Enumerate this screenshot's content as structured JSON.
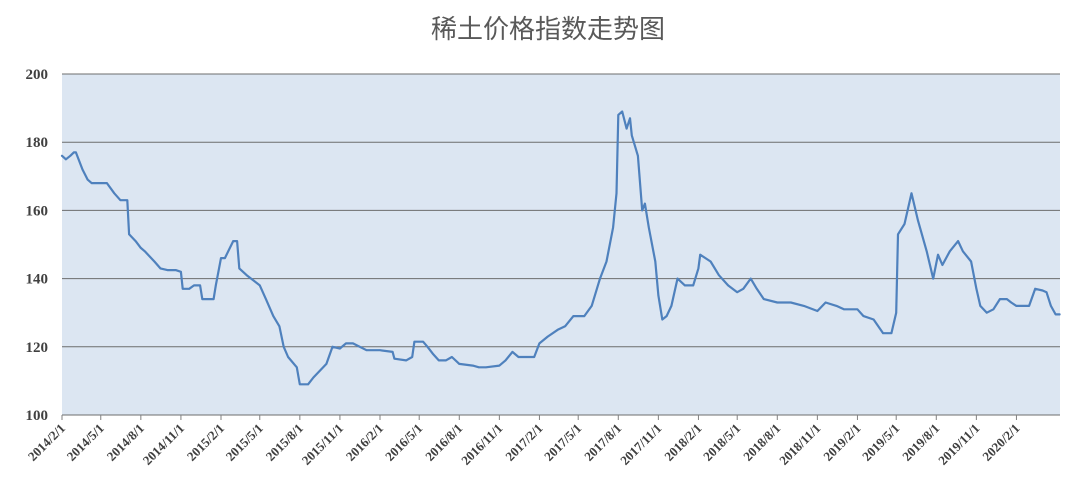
{
  "chart_data": {
    "type": "line",
    "title": "稀土价格指数走势图",
    "xlabel": "",
    "ylabel": "",
    "ylim": [
      100,
      200
    ],
    "yticks": [
      "100",
      "120",
      "140",
      "160",
      "180",
      "200"
    ],
    "xticks": [
      "2014/2/1",
      "2014/5/1",
      "2014/8/1",
      "2014/11/1",
      "2015/2/1",
      "2015/5/1",
      "2015/8/1",
      "2015/11/1",
      "2016/2/1",
      "2016/5/1",
      "2016/8/1",
      "2016/11/1",
      "2017/2/1",
      "2017/5/1",
      "2017/8/1",
      "2017/11/1",
      "2018/2/1",
      "2018/5/1",
      "2018/8/1",
      "2018/11/1",
      "2019/2/1",
      "2019/5/1",
      "2019/8/1",
      "2019/11/1",
      "2020/2/1"
    ],
    "grid": true,
    "legend": "none",
    "colors": {
      "line": "#4f81bd",
      "plot_bg": "#dce6f2",
      "grid": "#6d6d6d"
    },
    "series": [
      {
        "values": [
          [
            "2014-02-01",
            176
          ],
          [
            "2014-02-10",
            175
          ],
          [
            "2014-02-20",
            176
          ],
          [
            "2014-02-28",
            177
          ],
          [
            "2014-03-05",
            177
          ],
          [
            "2014-03-20",
            172
          ],
          [
            "2014-04-01",
            169
          ],
          [
            "2014-04-10",
            168
          ],
          [
            "2014-05-01",
            168
          ],
          [
            "2014-05-15",
            168
          ],
          [
            "2014-06-01",
            165
          ],
          [
            "2014-06-15",
            163
          ],
          [
            "2014-07-01",
            163
          ],
          [
            "2014-07-05",
            153
          ],
          [
            "2014-07-20",
            151
          ],
          [
            "2014-08-01",
            149
          ],
          [
            "2014-08-10",
            148
          ],
          [
            "2014-09-01",
            145
          ],
          [
            "2014-09-15",
            143
          ],
          [
            "2014-10-01",
            142.5
          ],
          [
            "2014-10-20",
            142.5
          ],
          [
            "2014-11-01",
            142
          ],
          [
            "2014-11-05",
            137
          ],
          [
            "2014-11-20",
            137
          ],
          [
            "2014-12-01",
            138
          ],
          [
            "2014-12-15",
            138
          ],
          [
            "2014-12-20",
            134
          ],
          [
            "2015-01-01",
            134
          ],
          [
            "2015-01-15",
            134
          ],
          [
            "2015-01-20",
            138
          ],
          [
            "2015-02-01",
            146
          ],
          [
            "2015-02-10",
            146
          ],
          [
            "2015-03-01",
            151
          ],
          [
            "2015-03-10",
            151
          ],
          [
            "2015-03-15",
            143
          ],
          [
            "2015-04-01",
            141
          ],
          [
            "2015-05-01",
            138
          ],
          [
            "2015-05-15",
            134
          ],
          [
            "2015-06-01",
            129
          ],
          [
            "2015-06-15",
            126
          ],
          [
            "2015-06-25",
            120
          ],
          [
            "2015-07-05",
            117
          ],
          [
            "2015-07-25",
            114
          ],
          [
            "2015-08-01",
            109
          ],
          [
            "2015-08-20",
            109
          ],
          [
            "2015-09-01",
            111
          ],
          [
            "2015-10-01",
            115
          ],
          [
            "2015-10-15",
            120
          ],
          [
            "2015-11-01",
            119.5
          ],
          [
            "2015-11-15",
            121
          ],
          [
            "2015-12-01",
            121
          ],
          [
            "2016-01-01",
            119
          ],
          [
            "2016-02-01",
            119
          ],
          [
            "2016-03-01",
            118.5
          ],
          [
            "2016-03-05",
            116.5
          ],
          [
            "2016-04-01",
            116
          ],
          [
            "2016-04-15",
            117
          ],
          [
            "2016-04-20",
            121.5
          ],
          [
            "2016-05-10",
            121.5
          ],
          [
            "2016-05-20",
            120
          ],
          [
            "2016-06-01",
            118
          ],
          [
            "2016-06-15",
            116
          ],
          [
            "2016-07-01",
            116
          ],
          [
            "2016-07-15",
            117
          ],
          [
            "2016-08-01",
            115
          ],
          [
            "2016-09-01",
            114.5
          ],
          [
            "2016-09-15",
            114
          ],
          [
            "2016-10-01",
            114
          ],
          [
            "2016-11-01",
            114.5
          ],
          [
            "2016-11-15",
            116
          ],
          [
            "2016-12-01",
            118.5
          ],
          [
            "2016-12-15",
            117
          ],
          [
            "2017-01-01",
            117
          ],
          [
            "2017-01-20",
            117
          ],
          [
            "2017-02-01",
            121
          ],
          [
            "2017-02-20",
            123
          ],
          [
            "2017-03-15",
            125
          ],
          [
            "2017-04-01",
            126
          ],
          [
            "2017-04-20",
            129
          ],
          [
            "2017-05-15",
            129
          ],
          [
            "2017-06-01",
            132
          ],
          [
            "2017-06-20",
            140
          ],
          [
            "2017-07-05",
            145
          ],
          [
            "2017-07-20",
            155
          ],
          [
            "2017-07-28",
            165
          ],
          [
            "2017-08-01",
            188
          ],
          [
            "2017-08-10",
            189
          ],
          [
            "2017-08-20",
            184
          ],
          [
            "2017-08-28",
            187
          ],
          [
            "2017-09-01",
            182
          ],
          [
            "2017-09-15",
            176
          ],
          [
            "2017-09-25",
            160
          ],
          [
            "2017-10-01",
            162
          ],
          [
            "2017-10-10",
            155
          ],
          [
            "2017-10-25",
            145
          ],
          [
            "2017-11-01",
            135
          ],
          [
            "2017-11-10",
            128
          ],
          [
            "2017-11-20",
            129
          ],
          [
            "2017-12-01",
            132
          ],
          [
            "2017-12-15",
            140
          ],
          [
            "2018-01-01",
            138
          ],
          [
            "2018-01-20",
            138
          ],
          [
            "2018-02-01",
            143
          ],
          [
            "2018-02-05",
            147
          ],
          [
            "2018-03-01",
            145
          ],
          [
            "2018-03-20",
            141
          ],
          [
            "2018-04-10",
            138
          ],
          [
            "2018-05-01",
            136
          ],
          [
            "2018-05-15",
            137
          ],
          [
            "2018-06-01",
            140
          ],
          [
            "2018-06-15",
            137
          ],
          [
            "2018-07-01",
            134
          ],
          [
            "2018-08-01",
            133
          ],
          [
            "2018-09-01",
            133
          ],
          [
            "2018-10-01",
            132
          ],
          [
            "2018-11-01",
            130.5
          ],
          [
            "2018-11-20",
            133
          ],
          [
            "2018-12-15",
            132
          ],
          [
            "2019-01-01",
            131
          ],
          [
            "2019-02-01",
            131
          ],
          [
            "2019-02-15",
            129
          ],
          [
            "2019-03-10",
            128
          ],
          [
            "2019-04-01",
            124
          ],
          [
            "2019-04-20",
            124
          ],
          [
            "2019-05-01",
            130
          ],
          [
            "2019-05-05",
            153
          ],
          [
            "2019-05-20",
            156
          ],
          [
            "2019-06-05",
            165
          ],
          [
            "2019-06-20",
            157
          ],
          [
            "2019-07-10",
            148
          ],
          [
            "2019-07-25",
            140
          ],
          [
            "2019-08-05",
            147
          ],
          [
            "2019-08-15",
            144
          ],
          [
            "2019-09-01",
            148
          ],
          [
            "2019-09-20",
            151
          ],
          [
            "2019-10-01",
            148
          ],
          [
            "2019-10-20",
            145
          ],
          [
            "2019-11-01",
            137
          ],
          [
            "2019-11-10",
            132
          ],
          [
            "2019-11-25",
            130
          ],
          [
            "2019-12-10",
            131
          ],
          [
            "2019-12-25",
            134
          ],
          [
            "2020-01-10",
            134
          ],
          [
            "2020-01-20",
            133
          ],
          [
            "2020-02-01",
            132
          ],
          [
            "2020-03-01",
            132
          ],
          [
            "2020-03-15",
            137
          ],
          [
            "2020-04-01",
            136.5
          ],
          [
            "2020-04-10",
            136
          ],
          [
            "2020-04-20",
            132
          ],
          [
            "2020-05-01",
            129.5
          ],
          [
            "2020-05-10",
            129.5
          ]
        ]
      }
    ]
  }
}
